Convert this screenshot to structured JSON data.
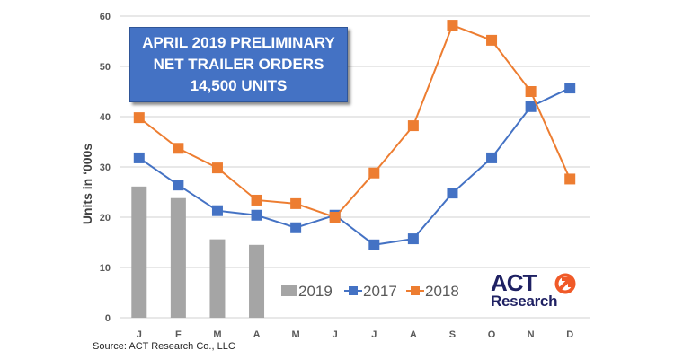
{
  "callout": {
    "line1": "APRIL 2019 PRELIMINARY",
    "line2": "NET TRAILER ORDERS",
    "line3": "14,500 UNITS",
    "background": "#4472c4"
  },
  "source": "Source: ACT Research Co., LLC",
  "logo": {
    "top": "ACT",
    "bottom": "Research",
    "text_color": "#1f2163",
    "icon_color": "#f05a28",
    "icon": "arrow-circle-icon"
  },
  "colors": {
    "2019": "#a5a5a5",
    "2017": "#4472c4",
    "2018": "#ed7d31",
    "grid": "#d9d9d9"
  },
  "chart_data": {
    "type": "bar+line",
    "title": "April 2019 Preliminary Net Trailer Orders 14,500 Units",
    "xlabel": "",
    "ylabel": "Units in ‘000s",
    "ylim": [
      0,
      60
    ],
    "yticks": [
      0,
      10,
      20,
      30,
      40,
      50,
      60
    ],
    "grid": true,
    "legend_position": "bottom-center-inside",
    "categories": [
      "J",
      "F",
      "M",
      "A",
      "M",
      "J",
      "J",
      "A",
      "S",
      "O",
      "N",
      "D"
    ],
    "series": [
      {
        "name": "2019",
        "type": "bar",
        "color": "#a5a5a5",
        "values": [
          26.1,
          23.8,
          15.6,
          14.5,
          null,
          null,
          null,
          null,
          null,
          null,
          null,
          null
        ]
      },
      {
        "name": "2017",
        "type": "line",
        "marker": "square",
        "color": "#4472c4",
        "values": [
          31.8,
          26.4,
          21.3,
          20.4,
          17.9,
          20.4,
          14.5,
          15.7,
          24.8,
          31.8,
          42.0,
          45.7
        ]
      },
      {
        "name": "2018",
        "type": "line",
        "marker": "square",
        "color": "#ed7d31",
        "values": [
          39.8,
          33.7,
          29.8,
          23.4,
          22.7,
          20.0,
          28.8,
          38.2,
          58.2,
          55.2,
          45.0,
          27.6
        ]
      }
    ],
    "legend": [
      "2019",
      "2017",
      "2018"
    ],
    "annotations": [
      "APRIL 2019 PRELIMINARY NET TRAILER ORDERS 14,500 UNITS"
    ],
    "source": "Source: ACT Research Co., LLC"
  }
}
